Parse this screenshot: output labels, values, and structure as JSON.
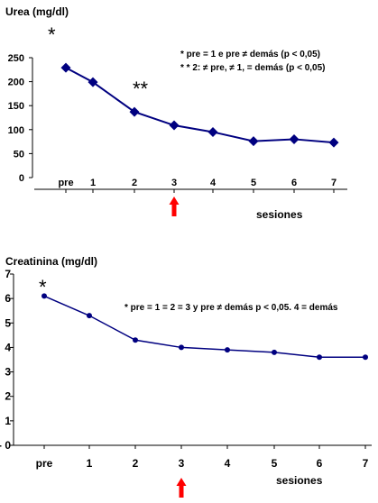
{
  "chart_data": [
    {
      "type": "line",
      "title": "Urea (mg/dl)",
      "xlabel": "sesiones",
      "ylabel": "",
      "categories": [
        "pre",
        "1",
        "2",
        "3",
        "4",
        "5",
        "6",
        "7"
      ],
      "values": [
        229,
        199,
        137,
        109,
        95,
        76,
        80,
        73
      ],
      "ylim": [
        0,
        250
      ],
      "yticks": [
        "0",
        "50",
        "100",
        "150",
        "200",
        "250"
      ],
      "grid": false,
      "marker": "diamond",
      "color": "#000080",
      "annotations": {
        "star_pre": "*",
        "star_2": "**",
        "note_line1": "* pre = 1 e pre ≠ demás  (p < 0,05)",
        "note_line2": "* * 2:  ≠ pre, ≠ 1, = demás  (p < 0,05)"
      },
      "highlight_category": "3",
      "highlight_color": "#ff0000"
    },
    {
      "type": "line",
      "title": "Creatinina (mg/dl)",
      "xlabel": "sesiones",
      "ylabel": "",
      "categories": [
        "pre",
        "1",
        "2",
        "3",
        "4",
        "5",
        "6",
        "7"
      ],
      "values": [
        6.1,
        5.3,
        4.3,
        4.0,
        3.9,
        3.8,
        3.6,
        3.6
      ],
      "ylim": [
        0,
        7
      ],
      "yticks": [
        "- 0",
        "1",
        "2",
        "3",
        "4",
        "5",
        "6",
        "7"
      ],
      "grid": false,
      "marker": "dot",
      "color": "#000080",
      "annotations": {
        "star_pre": "*",
        "note_line1": "* pre = 1 = 2 = 3 y pre ≠ demás  p < 0,05. 4 = demás"
      },
      "highlight_category": "3",
      "highlight_color": "#ff0000"
    }
  ]
}
